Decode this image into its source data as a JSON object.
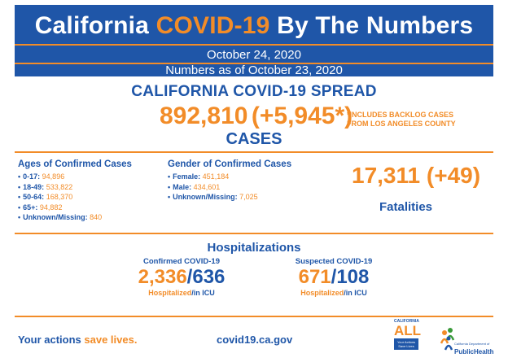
{
  "header": {
    "title_part1": "California ",
    "title_accent": "COVID-19",
    "title_part2": " By The Numbers",
    "date": "October 24, 2020",
    "as_of": "Numbers as of October 23, 2020"
  },
  "spread": {
    "title": "CALIFORNIA COVID-19 SPREAD",
    "cases_total": "892,810",
    "cases_new": "(+5,945*)",
    "backlog_note_1": "*INCLUDES BACKLOG CASES",
    "backlog_note_2": "FROM LOS ANGELES COUNTY",
    "cases_label": "CASES"
  },
  "ages": {
    "heading": "Ages of Confirmed Cases",
    "items": [
      {
        "label": "0-17: ",
        "value": "94,896"
      },
      {
        "label": "18-49: ",
        "value": "533,822"
      },
      {
        "label": "50-64: ",
        "value": "168,370"
      },
      {
        "label": "65+: ",
        "value": "94,882"
      },
      {
        "label": "Unknown/Missing: ",
        "value": "840"
      }
    ]
  },
  "gender": {
    "heading": "Gender of Confirmed Cases",
    "items": [
      {
        "label": "Female: ",
        "value": "451,184"
      },
      {
        "label": "Male: ",
        "value": "434,601"
      },
      {
        "label": "Unknown/Missing: ",
        "value": "7,025"
      }
    ]
  },
  "fatalities": {
    "total": "17,311",
    "new": "(+49)",
    "label": "Fatalities"
  },
  "hospitalizations": {
    "title": "Hospitalizations",
    "confirmed": {
      "label": "Confirmed COVID-19",
      "hospitalized": "2,336",
      "icu": "636",
      "note_hosp": "Hospitalized",
      "note_icu": "/in ICU"
    },
    "suspected": {
      "label": "Suspected COVID-19",
      "hospitalized": "671",
      "icu": "108",
      "note_hosp": "Hospitalized",
      "note_icu": "/in ICU"
    }
  },
  "footer": {
    "tagline_part1": "Your actions ",
    "tagline_accent": "save lives.",
    "url": "covid19.ca.gov",
    "ca_all_small": "CALIFORNIA",
    "ca_all_big": "ALL",
    "ca_all_box": "Your Actions Save Lives",
    "cdph_name": "PublicHealth",
    "cdph_dept": "California Department of"
  },
  "colors": {
    "brand_blue": "#1f56a8",
    "accent_orange": "#f28c28"
  }
}
